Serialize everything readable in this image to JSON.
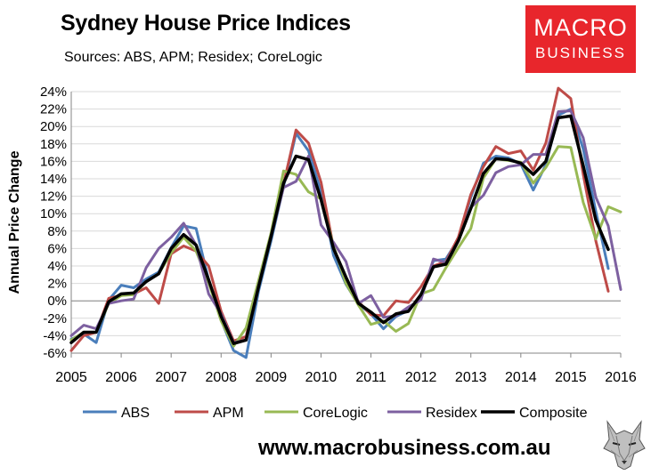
{
  "header": {
    "title": "Sydney House Price Indices",
    "subtitle": "Sources: ABS, APM; Residex; CoreLogic"
  },
  "logo": {
    "line1": "MACRO",
    "line2": "BUSINESS",
    "color": "#e8262c"
  },
  "footer": {
    "url": "www.macrobusiness.com.au"
  },
  "chart_data": {
    "type": "line",
    "title": "Sydney House Price Indices",
    "ylabel": "Annual Price Change",
    "xlabel": "",
    "xlim": [
      2005,
      2016
    ],
    "ylim": [
      -6,
      24
    ],
    "x_ticks": [
      "2005",
      "2006",
      "2007",
      "2008",
      "2009",
      "2010",
      "2011",
      "2012",
      "2013",
      "2014",
      "2015",
      "2016"
    ],
    "y_ticks": [
      "-6%",
      "-4%",
      "-2%",
      "0%",
      "2%",
      "4%",
      "6%",
      "8%",
      "10%",
      "12%",
      "14%",
      "16%",
      "18%",
      "20%",
      "22%",
      "24%"
    ],
    "grid": "horizontal",
    "legend_position": "bottom",
    "series": [
      {
        "name": "ABS",
        "color": "#4a7ebb",
        "width": 3,
        "points": [
          [
            2005.0,
            -4.4
          ],
          [
            2005.25,
            -3.8
          ],
          [
            2005.5,
            -4.8
          ],
          [
            2005.75,
            0.1
          ],
          [
            2006.0,
            1.8
          ],
          [
            2006.25,
            1.5
          ],
          [
            2006.5,
            2.5
          ],
          [
            2006.75,
            3.3
          ],
          [
            2007.0,
            6.1
          ],
          [
            2007.25,
            8.6
          ],
          [
            2007.5,
            8.3
          ],
          [
            2007.75,
            2.4
          ],
          [
            2008.0,
            -2.2
          ],
          [
            2008.25,
            -5.7
          ],
          [
            2008.5,
            -6.5
          ],
          [
            2008.75,
            1.1
          ],
          [
            2009.0,
            6.9
          ],
          [
            2009.25,
            13.1
          ],
          [
            2009.5,
            19.2
          ],
          [
            2009.75,
            17.2
          ],
          [
            2010.0,
            12.5
          ],
          [
            2010.25,
            5.2
          ],
          [
            2010.5,
            1.9
          ],
          [
            2010.75,
            -0.4
          ],
          [
            2011.0,
            -1.5
          ],
          [
            2011.25,
            -3.2
          ],
          [
            2011.5,
            -1.8
          ],
          [
            2011.75,
            -1.1
          ],
          [
            2012.0,
            0.5
          ],
          [
            2012.25,
            4.6
          ],
          [
            2012.5,
            4.8
          ],
          [
            2012.75,
            7.1
          ],
          [
            2013.0,
            11.9
          ],
          [
            2013.25,
            15.8
          ],
          [
            2013.5,
            16.6
          ],
          [
            2013.75,
            16.4
          ],
          [
            2014.0,
            15.7
          ],
          [
            2014.25,
            12.7
          ],
          [
            2014.5,
            15.6
          ],
          [
            2014.75,
            21.3
          ],
          [
            2015.0,
            22.0
          ],
          [
            2015.25,
            17.4
          ],
          [
            2015.5,
            10.3
          ],
          [
            2015.75,
            3.7
          ]
        ]
      },
      {
        "name": "APM",
        "color": "#be4b48",
        "width": 3,
        "points": [
          [
            2005.0,
            -5.7
          ],
          [
            2005.25,
            -4.0
          ],
          [
            2005.5,
            -3.6
          ],
          [
            2005.75,
            0.3
          ],
          [
            2006.0,
            0.6
          ],
          [
            2006.25,
            0.8
          ],
          [
            2006.5,
            1.5
          ],
          [
            2006.75,
            -0.3
          ],
          [
            2007.0,
            5.4
          ],
          [
            2007.25,
            6.3
          ],
          [
            2007.5,
            5.7
          ],
          [
            2007.75,
            4.0
          ],
          [
            2008.0,
            -1.2
          ],
          [
            2008.25,
            -4.6
          ],
          [
            2008.5,
            -4.1
          ],
          [
            2008.75,
            1.8
          ],
          [
            2009.0,
            7.6
          ],
          [
            2009.25,
            13.4
          ],
          [
            2009.5,
            19.6
          ],
          [
            2009.75,
            18.1
          ],
          [
            2010.0,
            13.6
          ],
          [
            2010.25,
            6.1
          ],
          [
            2010.5,
            2.6
          ],
          [
            2010.75,
            -0.1
          ],
          [
            2011.0,
            -1.6
          ],
          [
            2011.25,
            -1.7
          ],
          [
            2011.5,
            0.0
          ],
          [
            2011.75,
            -0.2
          ],
          [
            2012.0,
            1.6
          ],
          [
            2012.25,
            4.0
          ],
          [
            2012.5,
            4.5
          ],
          [
            2012.75,
            7.3
          ],
          [
            2013.0,
            12.2
          ],
          [
            2013.25,
            15.4
          ],
          [
            2013.5,
            17.7
          ],
          [
            2013.75,
            16.9
          ],
          [
            2014.0,
            17.2
          ],
          [
            2014.25,
            15.0
          ],
          [
            2014.5,
            18.1
          ],
          [
            2014.75,
            24.4
          ],
          [
            2015.0,
            23.2
          ],
          [
            2015.25,
            14.5
          ],
          [
            2015.5,
            6.9
          ],
          [
            2015.75,
            1.1
          ]
        ]
      },
      {
        "name": "CoreLogic",
        "color": "#98b954",
        "width": 3,
        "points": [
          [
            2005.0,
            -4.5
          ],
          [
            2005.25,
            -3.6
          ],
          [
            2005.5,
            -3.6
          ],
          [
            2005.75,
            -0.3
          ],
          [
            2006.0,
            0.6
          ],
          [
            2006.25,
            0.7
          ],
          [
            2006.5,
            2.2
          ],
          [
            2006.75,
            3.1
          ],
          [
            2007.0,
            5.5
          ],
          [
            2007.25,
            7.3
          ],
          [
            2007.5,
            5.7
          ],
          [
            2007.75,
            2.1
          ],
          [
            2008.0,
            -2.3
          ],
          [
            2008.25,
            -5.2
          ],
          [
            2008.5,
            -3.1
          ],
          [
            2008.75,
            2.3
          ],
          [
            2009.0,
            7.8
          ],
          [
            2009.25,
            14.9
          ],
          [
            2009.5,
            14.5
          ],
          [
            2009.75,
            12.5
          ],
          [
            2010.0,
            11.7
          ],
          [
            2010.25,
            6.3
          ],
          [
            2010.5,
            2.0
          ],
          [
            2010.75,
            -0.5
          ],
          [
            2011.0,
            -2.7
          ],
          [
            2011.25,
            -2.3
          ],
          [
            2011.5,
            -3.5
          ],
          [
            2011.75,
            -2.6
          ],
          [
            2012.0,
            0.8
          ],
          [
            2012.25,
            1.3
          ],
          [
            2012.5,
            3.8
          ],
          [
            2012.75,
            6.1
          ],
          [
            2013.0,
            8.3
          ],
          [
            2013.25,
            14.1
          ],
          [
            2013.5,
            16.3
          ],
          [
            2013.75,
            16.1
          ],
          [
            2014.0,
            15.9
          ],
          [
            2014.25,
            13.5
          ],
          [
            2014.5,
            15.3
          ],
          [
            2014.75,
            17.7
          ],
          [
            2015.0,
            17.6
          ],
          [
            2015.25,
            11.3
          ],
          [
            2015.5,
            7.1
          ],
          [
            2015.75,
            10.8
          ],
          [
            2016.0,
            10.2
          ]
        ]
      },
      {
        "name": "Residex",
        "color": "#7d60a0",
        "width": 3,
        "points": [
          [
            2005.0,
            -4.0
          ],
          [
            2005.25,
            -2.8
          ],
          [
            2005.5,
            -3.2
          ],
          [
            2005.75,
            -0.3
          ],
          [
            2006.0,
            0.0
          ],
          [
            2006.25,
            0.2
          ],
          [
            2006.5,
            3.8
          ],
          [
            2006.75,
            6.0
          ],
          [
            2007.0,
            7.3
          ],
          [
            2007.25,
            8.9
          ],
          [
            2007.5,
            6.4
          ],
          [
            2007.75,
            0.8
          ],
          [
            2008.0,
            -1.5
          ],
          [
            2008.25,
            -4.8
          ],
          [
            2008.5,
            -4.5
          ],
          [
            2008.75,
            1.7
          ],
          [
            2009.0,
            7.4
          ],
          [
            2009.25,
            13.0
          ],
          [
            2009.5,
            13.7
          ],
          [
            2009.75,
            16.6
          ],
          [
            2010.0,
            8.7
          ],
          [
            2010.25,
            6.7
          ],
          [
            2010.5,
            4.5
          ],
          [
            2010.75,
            -0.3
          ],
          [
            2011.0,
            0.6
          ],
          [
            2011.25,
            -1.9
          ],
          [
            2011.5,
            -1.7
          ],
          [
            2011.75,
            -0.7
          ],
          [
            2012.0,
            0.1
          ],
          [
            2012.25,
            4.8
          ],
          [
            2012.5,
            4.4
          ],
          [
            2012.75,
            6.9
          ],
          [
            2013.0,
            10.7
          ],
          [
            2013.25,
            12.1
          ],
          [
            2013.5,
            14.7
          ],
          [
            2013.75,
            15.4
          ],
          [
            2014.0,
            15.6
          ],
          [
            2014.25,
            16.8
          ],
          [
            2014.5,
            16.8
          ],
          [
            2014.75,
            21.7
          ],
          [
            2015.0,
            21.8
          ],
          [
            2015.25,
            18.7
          ],
          [
            2015.5,
            11.9
          ],
          [
            2015.75,
            8.6
          ],
          [
            2016.0,
            1.3
          ]
        ]
      },
      {
        "name": "Composite",
        "color": "#000000",
        "width": 3.5,
        "points": [
          [
            2005.0,
            -4.8
          ],
          [
            2005.25,
            -3.6
          ],
          [
            2005.5,
            -3.6
          ],
          [
            2005.75,
            -0.1
          ],
          [
            2006.0,
            0.8
          ],
          [
            2006.25,
            0.9
          ],
          [
            2006.5,
            2.2
          ],
          [
            2006.75,
            3.1
          ],
          [
            2007.0,
            6.0
          ],
          [
            2007.25,
            7.6
          ],
          [
            2007.5,
            6.4
          ],
          [
            2007.75,
            2.4
          ],
          [
            2008.0,
            -1.8
          ],
          [
            2008.25,
            -4.9
          ],
          [
            2008.5,
            -4.5
          ],
          [
            2008.75,
            1.6
          ],
          [
            2009.0,
            7.4
          ],
          [
            2009.25,
            13.5
          ],
          [
            2009.5,
            16.6
          ],
          [
            2009.75,
            16.2
          ],
          [
            2010.0,
            11.6
          ],
          [
            2010.25,
            6.0
          ],
          [
            2010.5,
            2.7
          ],
          [
            2010.75,
            -0.3
          ],
          [
            2011.0,
            -1.3
          ],
          [
            2011.25,
            -2.5
          ],
          [
            2011.5,
            -1.5
          ],
          [
            2011.75,
            -1.2
          ],
          [
            2012.0,
            0.7
          ],
          [
            2012.25,
            3.9
          ],
          [
            2012.5,
            4.2
          ],
          [
            2012.75,
            6.9
          ],
          [
            2013.0,
            10.6
          ],
          [
            2013.25,
            14.6
          ],
          [
            2013.5,
            16.3
          ],
          [
            2013.75,
            16.2
          ],
          [
            2014.0,
            15.8
          ],
          [
            2014.25,
            14.5
          ],
          [
            2014.5,
            16.0
          ],
          [
            2014.75,
            21.0
          ],
          [
            2015.0,
            21.2
          ],
          [
            2015.25,
            15.5
          ],
          [
            2015.5,
            9.3
          ],
          [
            2015.75,
            5.9
          ]
        ]
      }
    ]
  }
}
